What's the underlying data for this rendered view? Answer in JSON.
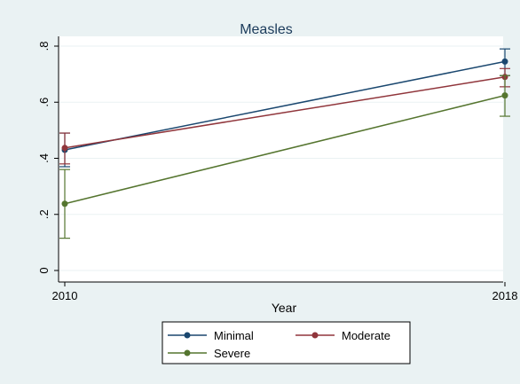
{
  "chart_data": {
    "type": "line",
    "title": "Measles",
    "xlabel": "Year",
    "ylabel": "",
    "categories": [
      "2010",
      "2018"
    ],
    "ylim": [
      0,
      0.8
    ],
    "yticks": [
      0,
      0.2,
      0.4,
      0.6,
      0.8
    ],
    "ytick_labels": [
      "0",
      ".2",
      ".4",
      ".6",
      ".8"
    ],
    "grid": true,
    "legend_position": "bottom",
    "series": [
      {
        "name": "Minimal",
        "color": "#1a476f",
        "values": [
          0.43,
          0.745
        ],
        "lower": [
          0.37,
          0.695
        ],
        "upper": [
          0.49,
          0.79
        ]
      },
      {
        "name": "Moderate",
        "color": "#90353b",
        "values": [
          0.437,
          0.69
        ],
        "lower": [
          0.38,
          0.655
        ],
        "upper": [
          0.49,
          0.72
        ]
      },
      {
        "name": "Severe",
        "color": "#55752f",
        "values": [
          0.238,
          0.624
        ],
        "lower": [
          0.115,
          0.55
        ],
        "upper": [
          0.36,
          0.695
        ]
      }
    ]
  }
}
